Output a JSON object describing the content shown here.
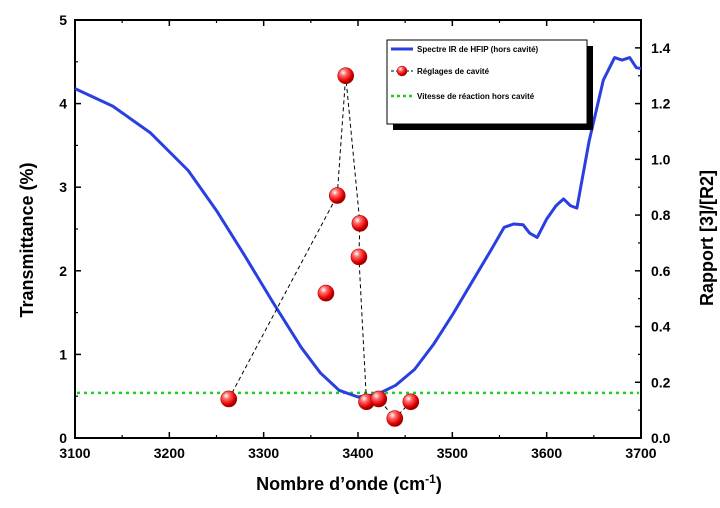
{
  "chart_data": {
    "type": "line",
    "title": "",
    "xlabel_main": "Nombre d’onde (cm",
    "xlabel_sup": "-1",
    "xlabel_end": ")",
    "ylabel": "Transmittance (%)",
    "y2label": "Rapport [3]/[R2]",
    "xlim": [
      3100,
      3700
    ],
    "ylim": [
      0,
      5
    ],
    "y2lim": [
      0,
      1.5
    ],
    "xticks": [
      "3100",
      "3200",
      "3300",
      "3400",
      "3500",
      "3600",
      "3700"
    ],
    "yticks": [
      "0",
      "1",
      "2",
      "3",
      "4",
      "5"
    ],
    "y2ticks": [
      "0.0",
      "0.2",
      "0.4",
      "0.6",
      "0.8",
      "1.0",
      "1.2",
      "1.4"
    ],
    "grid": false,
    "legend_position": "top-right",
    "series": [
      {
        "name": "Spectre IR de HFIP (hors cavité)",
        "kind": "line",
        "axis": "left",
        "color": "#2a3fe0",
        "x": [
          3100,
          3140,
          3180,
          3220,
          3250,
          3280,
          3310,
          3340,
          3360,
          3380,
          3400,
          3420,
          3440,
          3460,
          3480,
          3500,
          3520,
          3540,
          3555,
          3565,
          3575,
          3582,
          3590,
          3600,
          3610,
          3618,
          3625,
          3632,
          3645,
          3660,
          3672,
          3680,
          3688,
          3695,
          3700
        ],
        "y": [
          4.18,
          3.97,
          3.65,
          3.2,
          2.72,
          2.18,
          1.62,
          1.08,
          0.78,
          0.57,
          0.49,
          0.52,
          0.63,
          0.82,
          1.12,
          1.47,
          1.85,
          2.23,
          2.52,
          2.56,
          2.55,
          2.45,
          2.4,
          2.62,
          2.78,
          2.86,
          2.78,
          2.75,
          3.55,
          4.28,
          4.55,
          4.52,
          4.55,
          4.43,
          4.42
        ]
      },
      {
        "name": "Réglages de cavité",
        "kind": "scatter-dashed",
        "axis": "right",
        "color": "#e11010",
        "points": [
          {
            "x": 3263,
            "y": 0.14
          },
          {
            "x": 3366,
            "y": 0.52
          },
          {
            "x": 3378,
            "y": 0.87
          },
          {
            "x": 3387,
            "y": 1.3
          },
          {
            "x": 3402,
            "y": 0.77
          },
          {
            "x": 3401,
            "y": 0.65
          },
          {
            "x": 3409,
            "y": 0.13
          },
          {
            "x": 3422,
            "y": 0.14
          },
          {
            "x": 3439,
            "y": 0.07
          },
          {
            "x": 3456,
            "y": 0.13
          }
        ],
        "connect_order": [
          0,
          2,
          3,
          4,
          5,
          6,
          7,
          8,
          9
        ]
      },
      {
        "name": "Vitesse de réaction hors cavité",
        "kind": "line-dotted",
        "axis": "right",
        "color": "#22cc22",
        "y": 0.162
      }
    ]
  }
}
